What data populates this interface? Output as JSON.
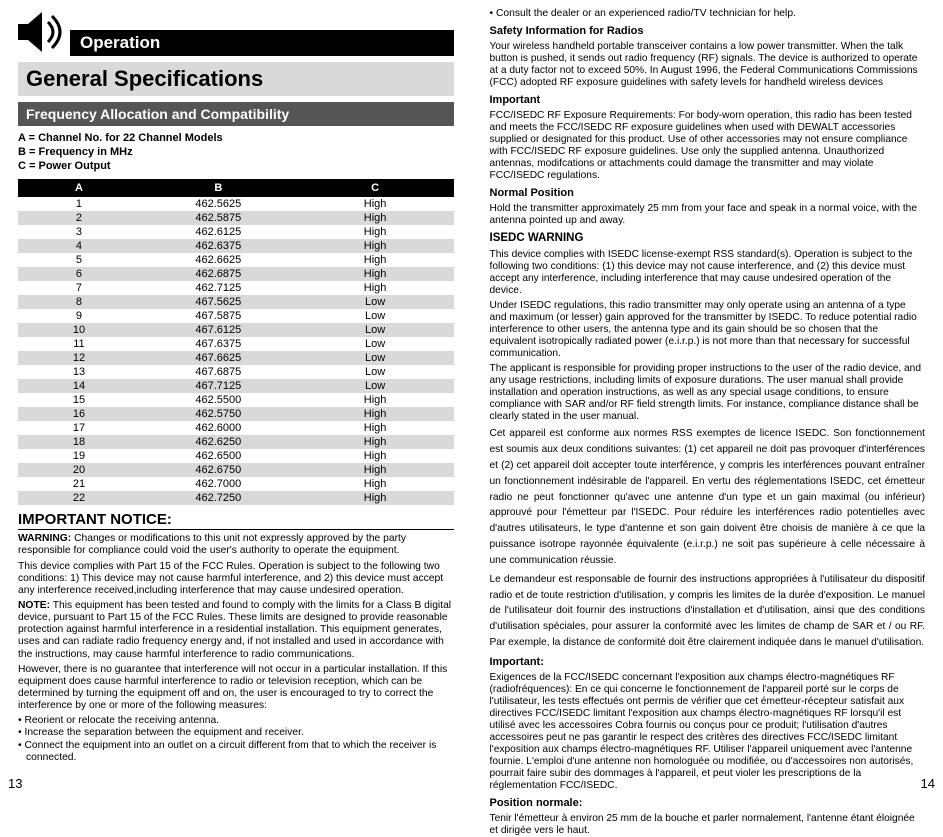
{
  "leftPage": {
    "operationLabel": "Operation",
    "specTitle": "General Specifications",
    "subhead": "Frequency Allocation and Compatibility",
    "legendA": "A = Channel No. for 22 Channel Models",
    "legendB": "B = Frequency in MHz",
    "legendC": "C = Power Output",
    "table": {
      "headers": [
        "A",
        "B",
        "C"
      ],
      "rows": [
        [
          "1",
          "462.5625",
          "High"
        ],
        [
          "2",
          "462.5875",
          "High"
        ],
        [
          "3",
          "462.6125",
          "High"
        ],
        [
          "4",
          "462.6375",
          "High"
        ],
        [
          "5",
          "462.6625",
          "High"
        ],
        [
          "6",
          "462.6875",
          "High"
        ],
        [
          "7",
          "462.7125",
          "High"
        ],
        [
          "8",
          "467.5625",
          "Low"
        ],
        [
          "9",
          "467.5875",
          "Low"
        ],
        [
          "10",
          "467.6125",
          "Low"
        ],
        [
          "11",
          "467.6375",
          "Low"
        ],
        [
          "12",
          "467.6625",
          "Low"
        ],
        [
          "13",
          "467.6875",
          "Low"
        ],
        [
          "14",
          "467.7125",
          "Low"
        ],
        [
          "15",
          "462.5500",
          "High"
        ],
        [
          "16",
          "462.5750",
          "High"
        ],
        [
          "17",
          "462.6000",
          "High"
        ],
        [
          "18",
          "462.6250",
          "High"
        ],
        [
          "19",
          "462.6500",
          "High"
        ],
        [
          "20",
          "462.6750",
          "High"
        ],
        [
          "21",
          "462.7000",
          "High"
        ],
        [
          "22",
          "462.7250",
          "High"
        ]
      ]
    },
    "importantTitle": "IMPORTANT NOTICE:",
    "warningLabel": "WARNING:",
    "warningText": " Changes or modifications to this unit not expressly approved by the party responsible for compliance could void the user's authority to operate the equipment.",
    "p1": "This device complies with Part 15 of the FCC Rules. Operation is subject to the following two conditions: 1) This device may not cause harmful interference, and 2) this device must accept any interference received,including interference that may cause undesired operation.",
    "noteLabel": "NOTE:",
    "noteText": " This equipment has been tested and found to comply with the limits for a Class B digital device, pursuant to Part 15 of the FCC Rules.  These limits are designed to provide reasonable protection against harmful interference in a residential installation.  This equipment generates, uses and can radiate radio frequency energy and, if not installed and used in accordance with the instructions, may cause harmful interference to radio communications.",
    "p2": "However, there is no guarantee that interference will not occur in a particular installation.  If this equipment does cause harmful interference to radio or television reception, which can be determined by turning the equipment off and on, the user is encouraged to try to correct the interference by one or more of the following measures:",
    "bullets": [
      "Reorient or relocate the receiving antenna.",
      "Increase the separation between the equipment and receiver.",
      "Connect the equipment into an outlet on a circuit different from that to which the receiver is connected."
    ],
    "pageNum": "13"
  },
  "rightPage": {
    "bullet0": "Consult the dealer or an experienced radio/TV technician for help.",
    "h1": "Safety Information for Radios",
    "p1": "Your wireless handheld portable transceiver contains a low power transmitter. When the talk button is pushed, it sends out radio frequency (RF) signals. The device is authorized to operate at a duty factor not to exceed 50%. In August 1996, the Federal Communications Commissions (FCC) adopted RF exposure guidelines with safety levels for handheld wireless devices",
    "h2": "Important",
    "p2": "FCC/ISEDC RF Exposure Requirements: For body-worn operation, this radio has been tested and meets the FCC/ISEDC RF exposure guidelines when used with DEWALT accessories supplied or designated for this product. Use of other accessories may not ensure compliance with FCC/ISEDC RF exposure guidelines. Use only the supplied antenna. Unauthorized antennas, modifcations or attachments could damage the transmitter and may violate FCC/ISEDC regulations.",
    "h3": "Normal Position",
    "p3": "Hold the transmitter approximately 25 mm from your face and   speak in a normal voice, with the antenna pointed up and away.",
    "h4": "ISEDC WARNING",
    "p4": "This device complies with ISEDC license-exempt RSS standard(s). Operation is subject to the following two conditions: (1) this device may not cause interference, and (2) this device must accept any interference, including interference that may cause undesired operation of the device.",
    "p5": "Under ISEDC regulations, this radio transmitter may only operate using an antenna of a type and maximum (or lesser) gain approved for the transmitter by ISEDC. To reduce potential radio interference to other users, the antenna type and its gain should be so chosen that the equivalent isotropically radiated power (e.i.r.p.) is not more than that necessary for successful communication.",
    "p6": "The applicant is responsible for providing proper instructions to the user of the radio device, and any usage restrictions, including limits of exposure durations. The user manual shall provide installation and operation instructions, as well as any special usage conditions, to ensure compliance with SAR and/or RF field strength limits. For instance, compliance distance shall be clearly stated in the user manual.",
    "p7": "Cet appareil est conforme aux normes RSS exemptes de licence ISEDC. Son fonctionnement est soumis aux deux conditions suivantes: (1) cet appareil ne doit pas provoquer d'interférences et (2) cet appareil doit accepter toute interférence, y compris les interférences pouvant entraîner un fonctionnement indésirable de l'appareil. En vertu des réglementations ISEDC, cet émetteur radio ne peut fonctionner qu'avec une antenne d'un type et un gain maximal (ou inférieur) approuvé pour l'émetteur par l'ISEDC. Pour réduire les interférences radio potentielles avec d'autres utilisateurs, le type d'antenne et son gain doivent être choisis de manière à ce que la puissance isotrope rayonnée équivalente (e.i.r.p.) ne soit pas supérieure à celle nécessaire à une communication réussie.",
    "p8": "Le demandeur est responsable de fournir des instructions appropriées à l'utilisateur du dispositif radio et de toute restriction d'utilisation, y compris les limites de la durée d'exposition. Le manuel de l'utilisateur doit fournir des instructions d'installation et d'utilisation, ainsi que des conditions d'utilisation spéciales, pour assurer la conformité avec les limites de champ de SAR et / ou RF. Par exemple, la distance de conformité doit être clairement indiquée dans le manuel d'utilisation.",
    "h5": "Important:",
    "p9": "Exigences de la FCC/ISEDC concernant l'exposition aux champs électro-magnétiques RF (radiofréquences): En ce qui concerne le fonctionnement de l'appareil porté sur le corps de l'utilisateur, les tests effectués ont permis de vérifier que cet émetteur-récepteur satisfait aux directives FCC/ISEDC limitant l'exposition aux champs électro-magnétiques RF lorsqu'il est utilisé avec les accessoires Cobra fournis ou conçus pour ce produit; l'utilisation d'autres accessoires peut ne pas garantir le respect des critères des directives FCC/ISEDC limitant l'exposition aux champs électro-magnétiques RF. Utiliser l'appareil uniquement avec l'antenne fournie. L'emploi d'une antenne non homologuée ou modifiée, ou d'accessoires non autorisés, pourrait faire subir des dommages à l'appareil, et peut violer les prescriptions de la réglementation FCC/ISEDC.",
    "h6": "Position normale:",
    "p10": "Tenir l'émetteur à environ 25 mm de la bouche et parler normalement, l'antenne étant éloignée et dirigée vers le haut.",
    "pageNum": "14"
  }
}
